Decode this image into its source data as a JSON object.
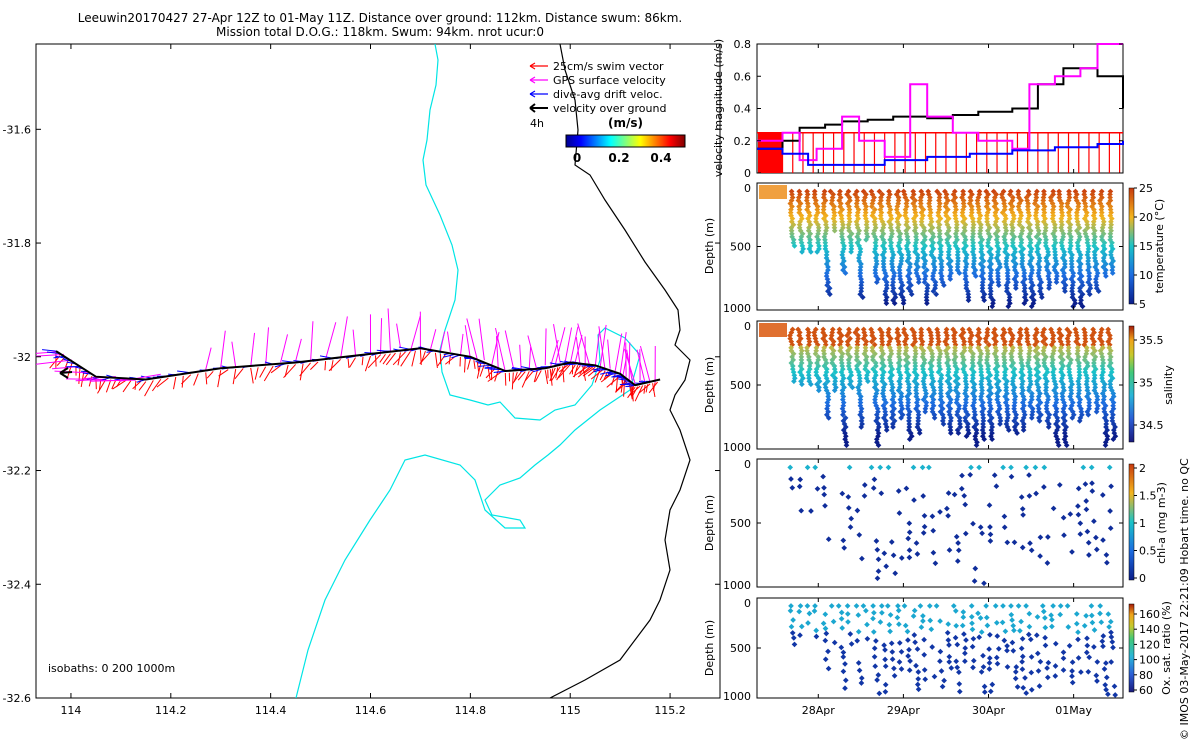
{
  "title": {
    "line1": "Leeuwin20170427 27-Apr 12Z to 01-May 11Z. Distance over ground: 112km. Distance swum: 86km.",
    "line2": "Mission total D.O.G.: 118km. Swum: 94km. nrot ucur:0"
  },
  "stamp": "© IMOS 03-May-2017 22:21:09 Hobart time. no QC",
  "map": {
    "x_ticks": [
      "114",
      "114.2",
      "114.4",
      "114.6",
      "114.8",
      "115",
      "115.2"
    ],
    "y_ticks": [
      "-31.6",
      "-31.8",
      "-32",
      "-32.2",
      "-32.4",
      "-32.6"
    ],
    "xlim": [
      113.93,
      115.3
    ],
    "ylim": [
      -32.6,
      -31.45
    ],
    "legend": {
      "items": [
        {
          "label": "25cm/s swim vector",
          "color": "#ff0000"
        },
        {
          "label": "GPS surface velocity",
          "color": "#ff00ff"
        },
        {
          "label": "dive-avg drift veloc.",
          "color": "#0000ff"
        },
        {
          "label": "velocity over ground",
          "color": "#000000"
        }
      ],
      "interval": "4h",
      "colorbar_title": "(m/s)",
      "colorbar_ticks": [
        "0",
        "0.2",
        "0.4"
      ]
    },
    "isobaths_label": "isobaths: 0   200  1000m",
    "colors": {
      "isobath_200": "#00e5e5",
      "coast": "#000000",
      "track": "#000000"
    }
  },
  "panels": {
    "time_ticks": [
      "28Apr",
      "29Apr",
      "30Apr",
      "01May"
    ],
    "velocity": {
      "ylabel": "velocity magnitude (m/s)",
      "y_ticks": [
        "0",
        "0.2",
        "0.4",
        "0.6",
        "0.8"
      ],
      "ylim": [
        0,
        0.8
      ]
    },
    "temperature": {
      "ylabel": "Depth (m)",
      "y_ticks": [
        "0",
        "500",
        "1000"
      ],
      "colorbar_label": "temperature (°C)",
      "colorbar_ticks": [
        "25",
        "20",
        "15",
        "10",
        "5"
      ]
    },
    "salinity": {
      "ylabel": "Depth (m)",
      "y_ticks": [
        "0",
        "500",
        "1000"
      ],
      "colorbar_label": "salinity",
      "colorbar_ticks": [
        "35.5",
        "35",
        "34.5"
      ]
    },
    "chla": {
      "ylabel": "Depth (m)",
      "y_ticks": [
        "0",
        "500",
        "1000"
      ],
      "colorbar_label": "chl-a (mg m-3)",
      "colorbar_ticks": [
        "2",
        "1.5",
        "1",
        "0.5",
        "0"
      ]
    },
    "oxygen": {
      "ylabel": "Depth (m)",
      "y_ticks": [
        "0",
        "500",
        "1000"
      ],
      "colorbar_label": "Ox. sat. ratio (%)",
      "colorbar_ticks": [
        "160",
        "140",
        "120",
        "100",
        "80",
        "60"
      ]
    }
  },
  "chart_data": {
    "type": "line",
    "track_lonlat": [
      [
        113.97,
        -31.99
      ],
      [
        114.05,
        -32.035
      ],
      [
        114.15,
        -32.04
      ],
      [
        114.3,
        -32.02
      ],
      [
        114.45,
        -32.01
      ],
      [
        114.6,
        -31.995
      ],
      [
        114.7,
        -31.985
      ],
      [
        114.8,
        -32.0
      ],
      [
        114.87,
        -32.025
      ],
      [
        114.95,
        -32.02
      ],
      [
        115.0,
        -32.01
      ],
      [
        115.05,
        -32.015
      ],
      [
        115.1,
        -32.03
      ],
      [
        115.13,
        -32.05
      ],
      [
        115.18,
        -32.04
      ]
    ],
    "velocity_series": [
      {
        "name": "velocity over ground",
        "color": "#000000",
        "x": [
          0,
          0.3,
          0.5,
          0.8,
          1.0,
          1.3,
          1.6,
          2.0,
          2.3,
          2.6,
          3.0,
          3.3,
          3.6,
          4.0,
          4.3
        ],
        "y": [
          0.15,
          0.2,
          0.28,
          0.3,
          0.32,
          0.33,
          0.35,
          0.34,
          0.36,
          0.38,
          0.4,
          0.55,
          0.65,
          0.6,
          0.4
        ]
      },
      {
        "name": "GPS surface velocity",
        "color": "#ff00ff",
        "x": [
          0,
          0.3,
          0.5,
          0.7,
          1.0,
          1.2,
          1.5,
          1.8,
          2.0,
          2.3,
          2.6,
          3.0,
          3.2,
          3.5,
          3.8,
          4.0
        ],
        "y": [
          0.2,
          0.25,
          0.08,
          0.15,
          0.35,
          0.2,
          0.1,
          0.55,
          0.35,
          0.25,
          0.2,
          0.15,
          0.55,
          0.6,
          0.65,
          0.8
        ]
      },
      {
        "name": "dive-avg drift veloc.",
        "color": "#0000ff",
        "x": [
          0,
          0.3,
          0.6,
          1.0,
          1.5,
          2.0,
          2.5,
          3.0,
          3.5,
          4.0,
          4.3
        ],
        "y": [
          0.15,
          0.12,
          0.05,
          0.05,
          0.08,
          0.1,
          0.12,
          0.14,
          0.16,
          0.18,
          0.2
        ]
      }
    ],
    "time_axis": [
      "28Apr",
      "29Apr",
      "30Apr",
      "01May"
    ],
    "xlim_days": [
      0,
      4.3
    ]
  }
}
